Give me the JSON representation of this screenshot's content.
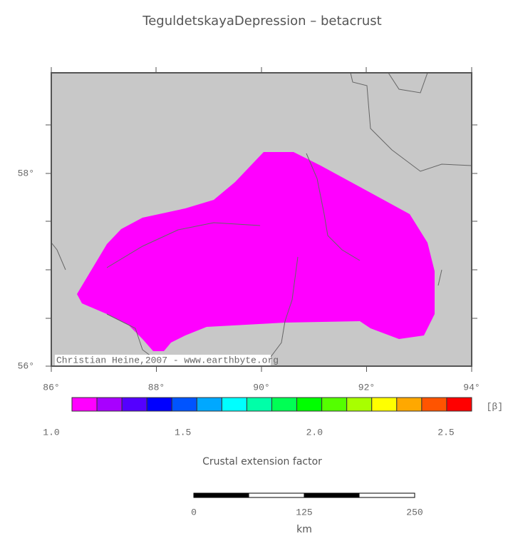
{
  "title": "TeguldetskayaDepression – betacrust",
  "map": {
    "lat_labels": [
      "58°",
      "56°"
    ],
    "lon_labels": [
      "86°",
      "88°",
      "90°",
      "92°",
      "94°"
    ],
    "credit": "Christian Heine,2007 - www.earthbyte.org",
    "land_color": "#c8c8c8",
    "region_color": "#ff00ff"
  },
  "colorbar": {
    "colors": [
      "#ff00ff",
      "#a800ff",
      "#5400ff",
      "#0000ff",
      "#0054ff",
      "#00a8ff",
      "#00ffff",
      "#00ffa8",
      "#00ff54",
      "#00ff00",
      "#54ff00",
      "#a8ff00",
      "#ffff00",
      "#ffa800",
      "#ff5400",
      "#ff0000"
    ],
    "labels": [
      "1.0",
      "1.5",
      "2.0",
      "2.5"
    ],
    "unit": "[β]",
    "title": "Crustal extension factor"
  },
  "scalebar": {
    "labels": [
      "0",
      "125",
      "250"
    ],
    "unit": "km"
  }
}
